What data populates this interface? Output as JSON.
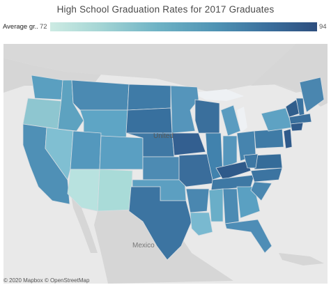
{
  "title": "High School Graduation Rates for 2017 Graduates",
  "legend": {
    "label": "Average gr..",
    "min": "72",
    "max": "94"
  },
  "map_labels": {
    "mexico": "Mexico",
    "us": "United"
  },
  "attribution": "© 2020 Mapbox © OpenStreetMap",
  "colors": {
    "land": "#d4d4d4",
    "water": "#e9e9e9",
    "scale": [
      "#cdebe3",
      "#a6d6d5",
      "#6fb3c5",
      "#4f93b4",
      "#3a6e9c",
      "#2d4e7e"
    ]
  }
}
